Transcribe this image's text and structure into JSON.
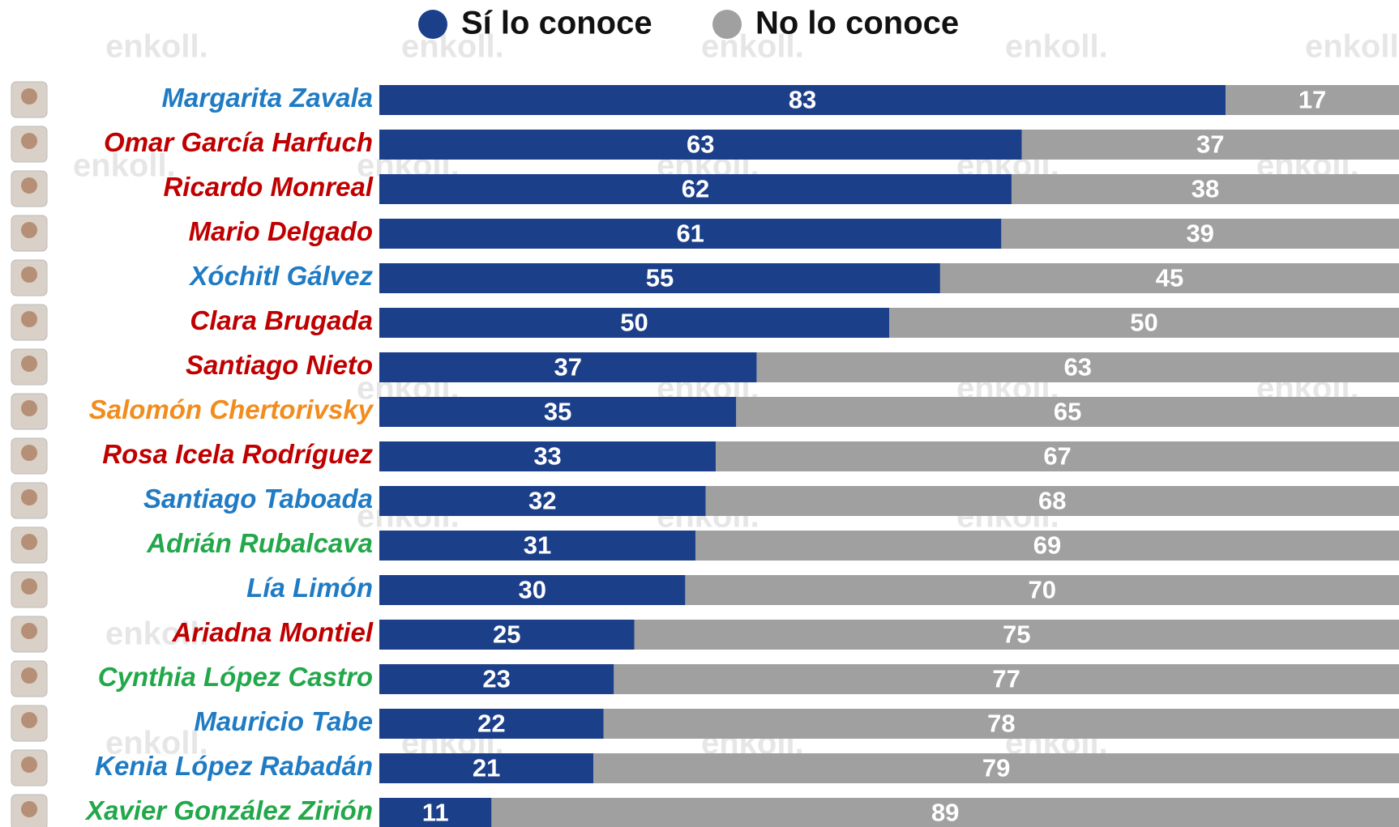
{
  "chart_data": {
    "type": "stacked_barh",
    "watermark": "enkoll.",
    "categories": [
      "Margarita Zavala",
      "Omar García Harfuch",
      "Ricardo Monreal",
      "Mario Delgado",
      "Xóchitl Gálvez",
      "Clara Brugada",
      "Santiago Nieto",
      "Salomón Chertorivsky",
      "Rosa Icela Rodríguez",
      "Santiago Taboada",
      "Adrián Rubalcava",
      "Lía Limón",
      "Ariadna Montiel",
      "Cynthia López Castro",
      "Mauricio Tabe",
      "Kenia López Rabadán",
      "Xavier González Zirión"
    ],
    "category_colors": [
      "#1f7bc4",
      "#c00000",
      "#c00000",
      "#c00000",
      "#1f7bc4",
      "#c00000",
      "#c00000",
      "#f28c1e",
      "#c00000",
      "#1f7bc4",
      "#22a84a",
      "#1f7bc4",
      "#c00000",
      "#22a84a",
      "#1f7bc4",
      "#1f7bc4",
      "#22a84a"
    ],
    "series": [
      {
        "name": "Sí lo conoce",
        "color": "#1c3f8a",
        "values": [
          83,
          63,
          62,
          61,
          55,
          50,
          37,
          35,
          33,
          32,
          31,
          30,
          25,
          23,
          22,
          21,
          11
        ]
      },
      {
        "name": "No lo conoce",
        "color": "#a0a0a0",
        "values": [
          17,
          37,
          38,
          39,
          45,
          50,
          63,
          65,
          67,
          68,
          69,
          70,
          75,
          77,
          78,
          79,
          89
        ]
      }
    ],
    "xlim": [
      0,
      100
    ]
  }
}
